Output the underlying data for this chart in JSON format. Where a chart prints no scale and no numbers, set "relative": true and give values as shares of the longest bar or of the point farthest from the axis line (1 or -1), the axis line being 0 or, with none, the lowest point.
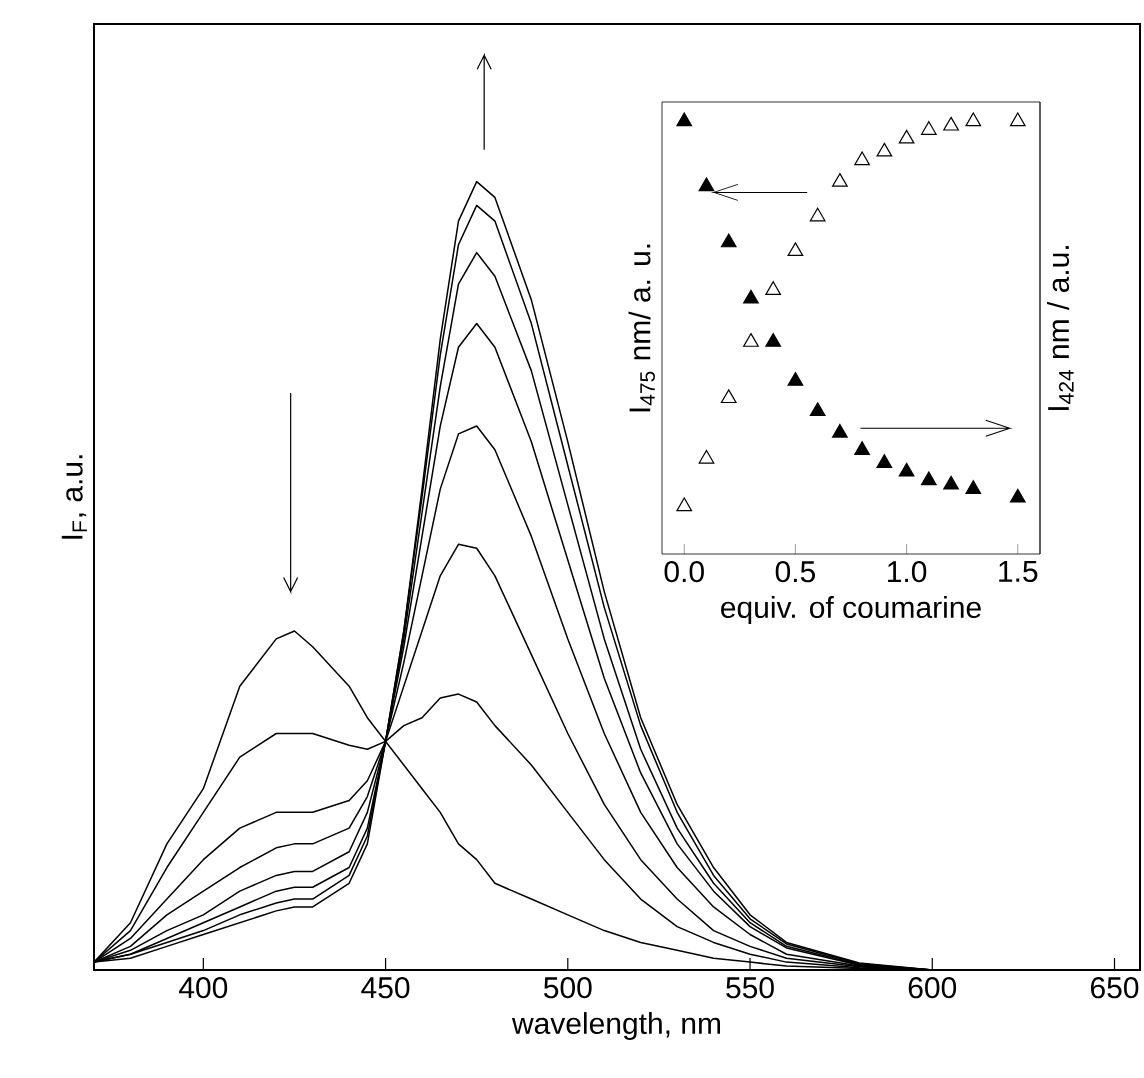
{
  "chart_data": [
    {
      "type": "line",
      "xlabel": "wavelength, nm",
      "ylabel": "I$_{F}$, a.u.",
      "relative": true,
      "xlim": [
        370,
        657
      ],
      "xticks": [
        400,
        450,
        500,
        550,
        600,
        650
      ],
      "x": [
        370,
        380,
        390,
        400,
        410,
        420,
        425,
        430,
        440,
        445,
        450,
        455,
        460,
        465,
        470,
        475,
        480,
        490,
        500,
        510,
        520,
        530,
        540,
        550,
        560,
        580,
        600
      ],
      "series": [
        {
          "color": "#000000",
          "values": [
            0.01,
            0.06,
            0.16,
            0.23,
            0.36,
            0.42,
            0.43,
            0.41,
            0.36,
            0.32,
            0.29,
            0.26,
            0.23,
            0.2,
            0.16,
            0.14,
            0.11,
            0.09,
            0.07,
            0.05,
            0.035,
            0.025,
            0.015,
            0.01,
            0.005,
            0.002,
            0
          ]
        },
        {
          "color": "#000000",
          "values": [
            0.01,
            0.05,
            0.13,
            0.2,
            0.27,
            0.3,
            0.3,
            0.3,
            0.285,
            0.28,
            0.29,
            0.31,
            0.32,
            0.345,
            0.35,
            0.34,
            0.31,
            0.26,
            0.2,
            0.14,
            0.09,
            0.055,
            0.035,
            0.02,
            0.01,
            0.003,
            0
          ]
        },
        {
          "color": "#000000",
          "values": [
            0.01,
            0.04,
            0.09,
            0.14,
            0.18,
            0.2,
            0.2,
            0.2,
            0.215,
            0.24,
            0.29,
            0.36,
            0.43,
            0.5,
            0.54,
            0.535,
            0.5,
            0.4,
            0.3,
            0.21,
            0.14,
            0.09,
            0.05,
            0.03,
            0.015,
            0.004,
            0
          ]
        },
        {
          "color": "#000000",
          "values": [
            0.01,
            0.03,
            0.07,
            0.1,
            0.13,
            0.155,
            0.16,
            0.16,
            0.18,
            0.22,
            0.29,
            0.39,
            0.5,
            0.61,
            0.68,
            0.69,
            0.66,
            0.55,
            0.42,
            0.3,
            0.2,
            0.13,
            0.08,
            0.045,
            0.02,
            0.005,
            0
          ]
        },
        {
          "color": "#000000",
          "values": [
            0.01,
            0.025,
            0.05,
            0.07,
            0.1,
            0.12,
            0.125,
            0.125,
            0.15,
            0.2,
            0.29,
            0.41,
            0.55,
            0.69,
            0.79,
            0.82,
            0.79,
            0.67,
            0.52,
            0.37,
            0.25,
            0.16,
            0.1,
            0.055,
            0.028,
            0.006,
            0
          ]
        },
        {
          "color": "#000000",
          "values": [
            0.01,
            0.02,
            0.04,
            0.06,
            0.08,
            0.1,
            0.105,
            0.105,
            0.13,
            0.18,
            0.29,
            0.42,
            0.58,
            0.74,
            0.87,
            0.91,
            0.88,
            0.76,
            0.59,
            0.42,
            0.28,
            0.18,
            0.11,
            0.06,
            0.03,
            0.007,
            0
          ]
        },
        {
          "color": "#000000",
          "values": [
            0.01,
            0.02,
            0.035,
            0.05,
            0.07,
            0.085,
            0.09,
            0.09,
            0.12,
            0.17,
            0.29,
            0.43,
            0.6,
            0.78,
            0.92,
            0.97,
            0.95,
            0.82,
            0.64,
            0.46,
            0.31,
            0.2,
            0.12,
            0.065,
            0.033,
            0.008,
            0
          ]
        },
        {
          "color": "#000000",
          "values": [
            0.01,
            0.015,
            0.03,
            0.045,
            0.06,
            0.075,
            0.08,
            0.08,
            0.11,
            0.16,
            0.29,
            0.43,
            0.61,
            0.8,
            0.95,
            1.0,
            0.98,
            0.85,
            0.67,
            0.48,
            0.32,
            0.21,
            0.13,
            0.07,
            0.035,
            0.009,
            0
          ]
        }
      ]
    },
    {
      "type": "scatter",
      "xlabel": "equiv. of coumarine",
      "ylabel": "I$_{475}$ nm/ a. u.",
      "y2label": "I$_{424}$ nm / a.u.",
      "relative": true,
      "marker": "triangle",
      "xlim": [
        -0.1,
        1.6
      ],
      "xticks": [
        {
          "value": 0,
          "label": "0.0"
        },
        {
          "value": 0.5,
          "label": "0.5"
        },
        {
          "value": 1,
          "label": "1.0"
        },
        {
          "value": 1.5,
          "label": "1.5"
        }
      ],
      "x": [
        0,
        0.1,
        0.2,
        0.3,
        0.4,
        0.5,
        0.6,
        0.7,
        0.8,
        0.9,
        1.0,
        1.1,
        1.2,
        1.3,
        1.5
      ],
      "series": [
        {
          "color": "#ffffff",
          "values": [
            0.11,
            0.22,
            0.36,
            0.49,
            0.61,
            0.7,
            0.78,
            0.86,
            0.91,
            0.93,
            0.96,
            0.98,
            0.99,
            1.0,
            1.0
          ]
        },
        {
          "color": "#000000",
          "axis": "y2",
          "values": [
            1.0,
            0.85,
            0.72,
            0.59,
            0.49,
            0.4,
            0.33,
            0.28,
            0.24,
            0.21,
            0.19,
            0.17,
            0.16,
            0.15,
            0.13
          ]
        }
      ]
    }
  ]
}
